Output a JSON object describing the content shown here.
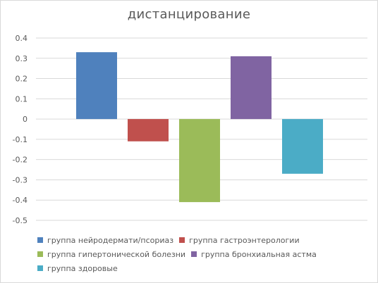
{
  "chart_data": {
    "type": "bar",
    "title": "дистанцирование",
    "categories": [
      "группа нейродермати/псориаз",
      "группа гастроэнтерологии",
      "группа гипертонической болезни",
      "группа бронхиальная астма",
      "группа здоровые"
    ],
    "values": [
      0.33,
      -0.11,
      -0.41,
      0.31,
      -0.27
    ],
    "colors": [
      "#4f81bd",
      "#c0504d",
      "#9bbb59",
      "#8064a2",
      "#4bacc6"
    ],
    "ylim": [
      -0.5,
      0.4
    ],
    "yticks": [
      "0.4",
      "0.3",
      "0.2",
      "0.1",
      "0",
      "-0.1",
      "-0.2",
      "-0.3",
      "-0.4",
      "-0.5"
    ],
    "grid": true,
    "legend_position": "bottom"
  }
}
